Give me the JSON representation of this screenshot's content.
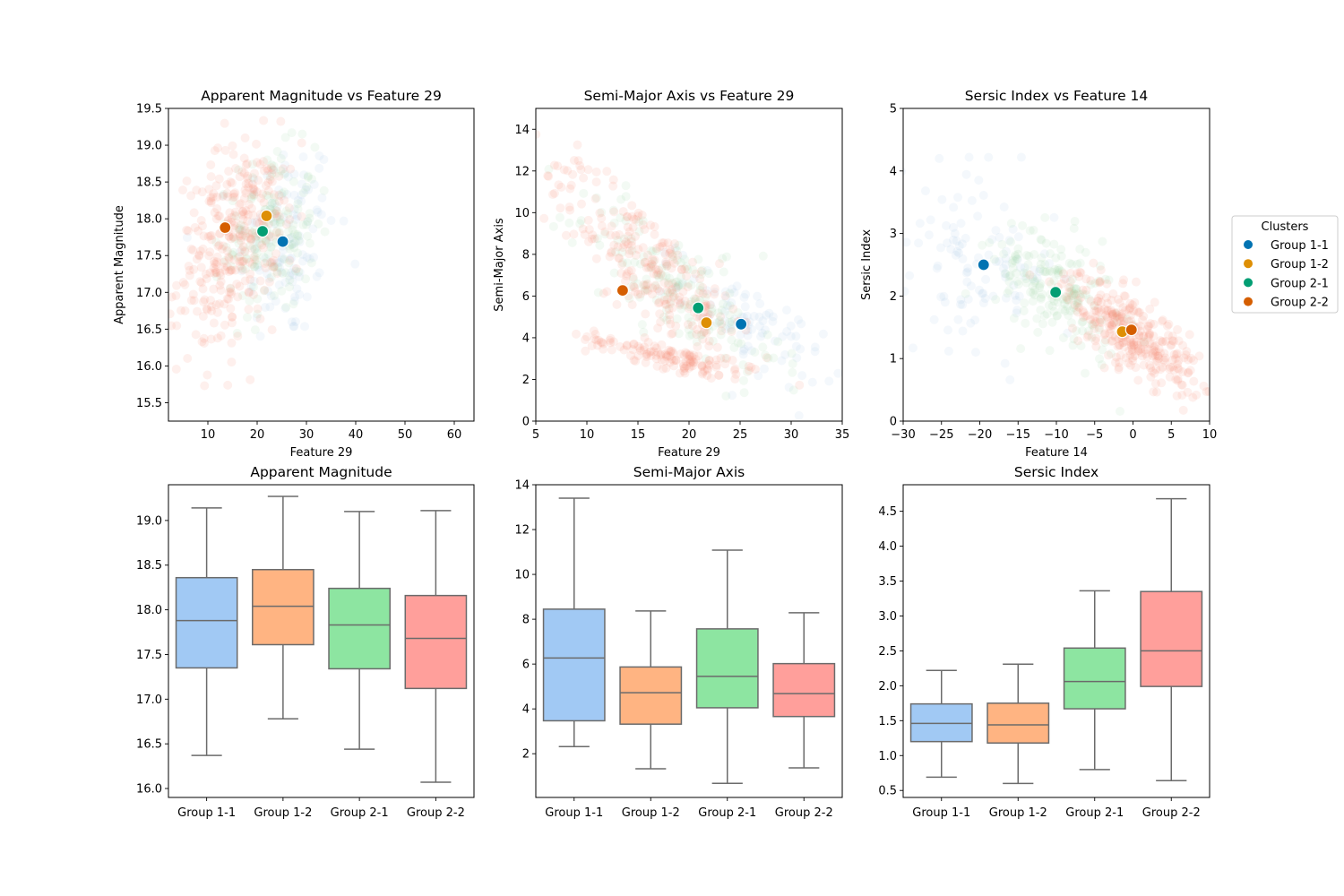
{
  "colors": {
    "group_1_1": "#0173b2",
    "group_1_2": "#de8f05",
    "group_2_1": "#029e73",
    "group_2_2": "#d55e00",
    "box_group_1_1": "#a1c9f4",
    "box_group_1_2": "#ffb482",
    "box_group_2_1": "#8de5a1",
    "box_group_2_2": "#ff9f9b",
    "cloud_red": "#fa8872",
    "cloud_green": "#9fd9ad",
    "cloud_blue": "#a9cbe8",
    "box_edge": "#6b6b6b"
  },
  "legend": {
    "title": "Clusters",
    "placement": "right-outside",
    "entries": [
      "Group 1-1",
      "Group 1-2",
      "Group 2-1",
      "Group 2-2"
    ]
  },
  "chart_data": [
    {
      "type": "scatter",
      "title": "Apparent Magnitude vs Feature 29",
      "xlabel": "Feature 29",
      "ylabel": "Apparent Magnitude",
      "xlim": [
        2,
        64
      ],
      "ylim": [
        15.25,
        19.5
      ],
      "xticks": [
        10,
        20,
        30,
        40,
        50,
        60
      ],
      "yticks": [
        15.5,
        16.0,
        16.5,
        17.0,
        17.5,
        18.0,
        18.5,
        19.0,
        19.5
      ],
      "ytick_decimals": 1,
      "grid": false,
      "centroids": [
        {
          "name": "Group 1-1",
          "x": 25.2,
          "y": 17.69
        },
        {
          "name": "Group 1-2",
          "x": 21.9,
          "y": 18.04
        },
        {
          "name": "Group 2-1",
          "x": 21.1,
          "y": 17.83
        },
        {
          "name": "Group 2-2",
          "x": 13.5,
          "y": 17.88
        }
      ],
      "point_cloud": [
        {
          "name": "Group 1-1",
          "cx": 26,
          "cy": 17.7,
          "sx": 5,
          "sy": 0.7,
          "rho": 0.1,
          "n": 120
        },
        {
          "name": "Group 1-2",
          "cx": 21,
          "cy": 18.0,
          "sx": 4,
          "sy": 0.45,
          "rho": 0.1,
          "n": 70
        },
        {
          "name": "Group 2-1",
          "cx": 23,
          "cy": 17.8,
          "sx": 4.5,
          "sy": 0.55,
          "rho": 0.1,
          "n": 160
        },
        {
          "name": "Group 2-2",
          "cx": 14,
          "cy": 17.6,
          "sx": 5,
          "sy": 0.7,
          "rho": 0.25,
          "n": 260
        }
      ]
    },
    {
      "type": "scatter",
      "title": "Semi-Major Axis vs Feature 29",
      "xlabel": "Feature 29",
      "ylabel": "Semi-Major Axis",
      "xlim": [
        5,
        35
      ],
      "ylim": [
        0,
        15
      ],
      "xticks": [
        5,
        10,
        15,
        20,
        25,
        30,
        35
      ],
      "yticks": [
        0,
        2,
        4,
        6,
        8,
        10,
        12,
        14
      ],
      "ytick_decimals": 0,
      "grid": false,
      "centroids": [
        {
          "name": "Group 1-1",
          "x": 25.1,
          "y": 4.65
        },
        {
          "name": "Group 1-2",
          "x": 21.7,
          "y": 4.72
        },
        {
          "name": "Group 2-1",
          "x": 20.9,
          "y": 5.43
        },
        {
          "name": "Group 2-2",
          "x": 13.5,
          "y": 6.27
        }
      ],
      "point_cloud": [
        {
          "name": "Group 1-1",
          "cx": 26,
          "cy": 4.6,
          "sx": 3.5,
          "sy": 1.4,
          "rho": -0.7,
          "n": 90
        },
        {
          "name": "Group 1-2",
          "cx": 20,
          "cy": 6.0,
          "sx": 4,
          "sy": 1.5,
          "rho": -0.7,
          "n": 60
        },
        {
          "name": "Group 2-1",
          "cx": 19,
          "cy": 6.3,
          "sx": 5,
          "sy": 2.2,
          "rho": -0.8,
          "n": 160
        },
        {
          "name": "Group 2-2",
          "cx": 15,
          "cy": 7.8,
          "sx": 5,
          "sy": 2.6,
          "rho": -0.85,
          "n": 200
        },
        {
          "name": "Group 2-2",
          "cx": 18,
          "cy": 3.1,
          "sx": 4,
          "sy": 0.55,
          "rho": -0.85,
          "n": 130
        }
      ]
    },
    {
      "type": "scatter",
      "title": "Sersic Index vs Feature 14",
      "xlabel": "Feature 14",
      "ylabel": "Sersic Index",
      "xlim": [
        -30,
        10
      ],
      "ylim": [
        0,
        5
      ],
      "xticks": [
        -30,
        -25,
        -20,
        -15,
        -10,
        -5,
        0,
        5,
        10
      ],
      "yticks": [
        0,
        1,
        2,
        3,
        4,
        5
      ],
      "ytick_decimals": 0,
      "grid": false,
      "centroids": [
        {
          "name": "Group 1-1",
          "x": -19.5,
          "y": 2.5
        },
        {
          "name": "Group 1-2",
          "x": -1.4,
          "y": 1.43
        },
        {
          "name": "Group 2-1",
          "x": -10.1,
          "y": 2.06
        },
        {
          "name": "Group 2-2",
          "x": -0.2,
          "y": 1.46
        }
      ],
      "point_cloud": [
        {
          "name": "Group 1-1",
          "cx": -20,
          "cy": 2.6,
          "sx": 5,
          "sy": 0.7,
          "rho": -0.2,
          "n": 110
        },
        {
          "name": "Group 1-2",
          "cx": -2,
          "cy": 1.5,
          "sx": 4,
          "sy": 0.4,
          "rho": -0.6,
          "n": 60
        },
        {
          "name": "Group 2-1",
          "cx": -10,
          "cy": 2.1,
          "sx": 4,
          "sy": 0.55,
          "rho": -0.5,
          "n": 180
        },
        {
          "name": "Group 2-2",
          "cx": 0,
          "cy": 1.4,
          "sx": 4.5,
          "sy": 0.45,
          "rho": -0.75,
          "n": 260
        }
      ]
    },
    {
      "type": "box",
      "title": "Apparent Magnitude",
      "categories": [
        "Group 1-1",
        "Group 1-2",
        "Group 2-1",
        "Group 2-2"
      ],
      "ylim": [
        15.9,
        19.4
      ],
      "yticks": [
        16.0,
        16.5,
        17.0,
        17.5,
        18.0,
        18.5,
        19.0
      ],
      "ytick_decimals": 1,
      "boxes": [
        {
          "whislo": 16.37,
          "q1": 17.35,
          "med": 17.88,
          "q3": 18.36,
          "whishi": 19.14
        },
        {
          "whislo": 16.78,
          "q1": 17.61,
          "med": 18.04,
          "q3": 18.45,
          "whishi": 19.27
        },
        {
          "whislo": 16.44,
          "q1": 17.34,
          "med": 17.83,
          "q3": 18.24,
          "whishi": 19.1
        },
        {
          "whislo": 16.07,
          "q1": 17.12,
          "med": 17.68,
          "q3": 18.16,
          "whishi": 19.11
        }
      ]
    },
    {
      "type": "box",
      "title": "Semi-Major Axis",
      "categories": [
        "Group 1-1",
        "Group 1-2",
        "Group 2-1",
        "Group 2-2"
      ],
      "ylim": [
        0.05,
        14.0
      ],
      "yticks": [
        2,
        4,
        6,
        8,
        10,
        12,
        14
      ],
      "ytick_decimals": 0,
      "boxes": [
        {
          "whislo": 2.32,
          "q1": 3.47,
          "med": 6.27,
          "q3": 8.45,
          "whishi": 13.4
        },
        {
          "whislo": 1.33,
          "q1": 3.32,
          "med": 4.72,
          "q3": 5.87,
          "whishi": 8.37
        },
        {
          "whislo": 0.68,
          "q1": 4.05,
          "med": 5.45,
          "q3": 7.57,
          "whishi": 11.08
        },
        {
          "whislo": 1.37,
          "q1": 3.66,
          "med": 4.68,
          "q3": 6.02,
          "whishi": 8.29
        }
      ]
    },
    {
      "type": "box",
      "title": "Sersic Index",
      "categories": [
        "Group 1-1",
        "Group 1-2",
        "Group 2-1",
        "Group 2-2"
      ],
      "ylim": [
        0.4,
        4.88
      ],
      "yticks": [
        0.5,
        1.0,
        1.5,
        2.0,
        2.5,
        3.0,
        3.5,
        4.0,
        4.5
      ],
      "ytick_decimals": 1,
      "boxes": [
        {
          "whislo": 0.69,
          "q1": 1.2,
          "med": 1.46,
          "q3": 1.74,
          "whishi": 2.22
        },
        {
          "whislo": 0.6,
          "q1": 1.18,
          "med": 1.44,
          "q3": 1.75,
          "whishi": 2.31
        },
        {
          "whislo": 0.8,
          "q1": 1.67,
          "med": 2.06,
          "q3": 2.54,
          "whishi": 3.36
        },
        {
          "whislo": 0.64,
          "q1": 1.99,
          "med": 2.5,
          "q3": 3.35,
          "whishi": 4.68
        }
      ]
    }
  ]
}
